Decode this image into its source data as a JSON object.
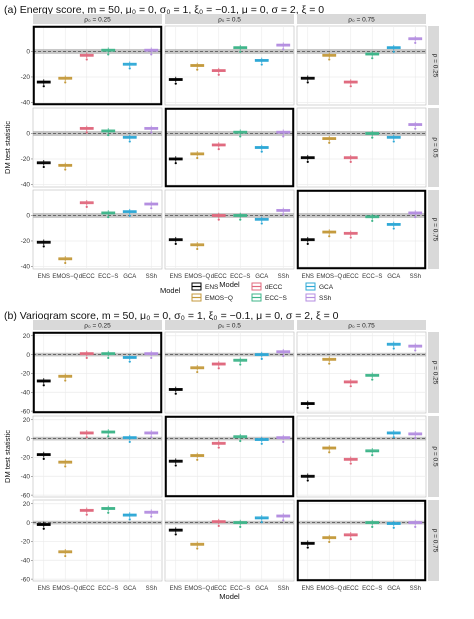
{
  "chart_data": [
    {
      "type": "boxplot-faceted",
      "panel_title": "(a) Energy score,  m = 50, μ₀ = 0, σ₀ = 1, ξ₀ = −0.1, μ = 0, σ = 2, ξ = 0",
      "xlabel": "Model",
      "ylabel": "DM test statistic",
      "categories": [
        "ENS",
        "EMOS−Q",
        "dECC",
        "ECC−S",
        "GCA",
        "SSh"
      ],
      "col_labels": [
        "ρ₀ = 0.25",
        "ρ₀ = 0.5",
        "ρ₀ = 0.75"
      ],
      "row_labels": [
        "ρ = 0.25",
        "ρ = 0.5",
        "ρ = 0.75"
      ],
      "ylim": [
        -42,
        20
      ],
      "yticks": [
        -40,
        -20,
        0
      ],
      "reference_band": [
        -1.96,
        1.96
      ],
      "highlighted_facets": [
        [
          0,
          0
        ],
        [
          1,
          1
        ],
        [
          2,
          2
        ]
      ],
      "facets": [
        [
          [
            -24,
            -21,
            -3,
            1,
            -10,
            1
          ],
          [
            -22,
            -11,
            -15,
            3,
            -7,
            5
          ],
          [
            -21,
            -3,
            -24,
            -2,
            3,
            10
          ]
        ],
        [
          [
            -23,
            -25,
            4,
            2,
            -3,
            4
          ],
          [
            -20,
            -16,
            -9,
            1,
            -11,
            1
          ],
          [
            -19,
            -4,
            -19,
            0,
            -3,
            7
          ]
        ],
        [
          [
            -21,
            -34,
            10,
            2,
            3,
            9
          ],
          [
            -19,
            -23,
            0,
            0,
            -3,
            4
          ],
          [
            -19,
            -13,
            -14,
            -1,
            -7,
            2
          ]
        ]
      ]
    },
    {
      "type": "boxplot-faceted",
      "panel_title": "(b) Variogram score,  m = 50, μ₀ = 0, σ₀ = 1, ξ₀ = −0.1, μ = 0, σ = 2, ξ = 0",
      "xlabel": "Model",
      "ylabel": "DM test statistic",
      "categories": [
        "ENS",
        "EMOS−Q",
        "dECC",
        "ECC−S",
        "GCA",
        "SSh"
      ],
      "col_labels": [
        "ρ₀ = 0.25",
        "ρ₀ = 0.5",
        "ρ₀ = 0.75"
      ],
      "row_labels": [
        "ρ = 0.25",
        "ρ = 0.5",
        "ρ = 0.75"
      ],
      "ylim": [
        -62,
        24
      ],
      "yticks": [
        -60,
        -40,
        -20,
        0,
        20
      ],
      "reference_band": [
        -1.96,
        1.96
      ],
      "highlighted_facets": [
        [
          0,
          0
        ],
        [
          1,
          1
        ],
        [
          2,
          2
        ]
      ],
      "facets": [
        [
          [
            -28,
            -23,
            1,
            1,
            -3,
            1
          ],
          [
            -37,
            -14,
            -10,
            -6,
            0,
            3
          ],
          [
            -52,
            -5,
            -29,
            -22,
            11,
            9
          ]
        ],
        [
          [
            -17,
            -25,
            6,
            7,
            1,
            6
          ],
          [
            -24,
            -18,
            -5,
            2,
            -1,
            1
          ],
          [
            -40,
            -10,
            -22,
            -13,
            6,
            5
          ]
        ],
        [
          [
            -2,
            -31,
            13,
            15,
            8,
            11
          ],
          [
            -8,
            -23,
            1,
            0,
            5,
            7
          ],
          [
            -22,
            -16,
            -13,
            0,
            -1,
            0
          ]
        ]
      ]
    }
  ],
  "legend": {
    "title": "Model",
    "items": [
      "ENS",
      "EMOS−Q",
      "dECC",
      "ECC−S",
      "GCA",
      "SSh"
    ]
  },
  "colors": {
    "ENS": "#000000",
    "EMOS−Q": "#c49a3c",
    "dECC": "#e0697e",
    "ECC−S": "#3fb58a",
    "GCA": "#2ea8d6",
    "SSh": "#b48ee0",
    "strip_fill": "#d9d9d9",
    "panel_fill": "#ffffff",
    "grid": "#ebebeb"
  }
}
